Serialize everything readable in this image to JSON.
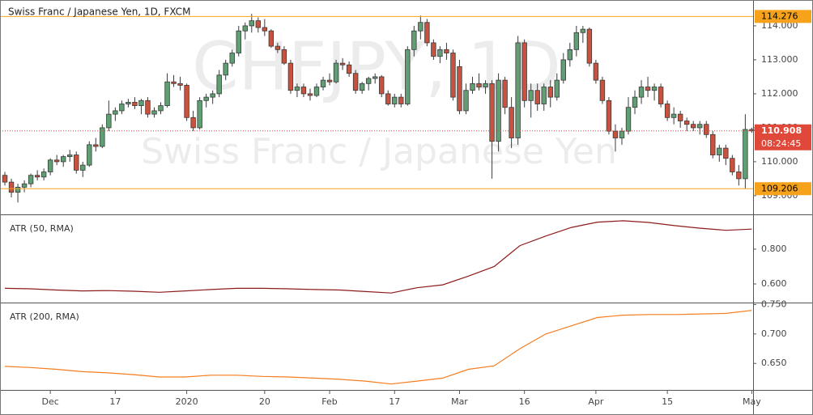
{
  "chart_data": {
    "type": "candlestick",
    "title": "Swiss Franc / Japanese Yen, 1D, FXCM",
    "watermark_symbol": "CHFJPY, 1D",
    "watermark_name": "Swiss Franc / Japanese Yen",
    "up_color": "#5f9f73",
    "down_color": "#c9523f",
    "candles": [
      [
        109.6,
        109.7,
        109.3,
        109.4
      ],
      [
        109.4,
        109.5,
        108.95,
        109.1
      ],
      [
        109.1,
        109.35,
        108.8,
        109.25
      ],
      [
        109.25,
        109.45,
        109.1,
        109.35
      ],
      [
        109.35,
        109.65,
        109.25,
        109.6
      ],
      [
        109.6,
        109.75,
        109.45,
        109.55
      ],
      [
        109.55,
        109.8,
        109.45,
        109.7
      ],
      [
        109.7,
        110.1,
        109.6,
        110.05
      ],
      [
        110.05,
        110.2,
        109.9,
        110.0
      ],
      [
        110.0,
        110.2,
        109.85,
        110.15
      ],
      [
        110.15,
        110.35,
        110.0,
        110.2
      ],
      [
        110.2,
        110.3,
        109.65,
        109.75
      ],
      [
        109.75,
        110.0,
        109.55,
        109.9
      ],
      [
        109.9,
        110.6,
        109.85,
        110.5
      ],
      [
        110.5,
        110.7,
        110.3,
        110.45
      ],
      [
        110.45,
        111.1,
        110.4,
        111.0
      ],
      [
        111.0,
        111.8,
        110.9,
        111.4
      ],
      [
        111.4,
        111.6,
        111.2,
        111.5
      ],
      [
        111.5,
        111.8,
        111.4,
        111.7
      ],
      [
        111.7,
        111.85,
        111.6,
        111.75
      ],
      [
        111.75,
        111.9,
        111.55,
        111.65
      ],
      [
        111.65,
        111.85,
        111.4,
        111.8
      ],
      [
        111.8,
        111.9,
        111.3,
        111.4
      ],
      [
        111.4,
        111.6,
        111.3,
        111.5
      ],
      [
        111.5,
        111.75,
        111.4,
        111.65
      ],
      [
        111.65,
        112.6,
        111.6,
        112.35
      ],
      [
        112.35,
        112.55,
        112.2,
        112.3
      ],
      [
        112.3,
        112.5,
        112.1,
        112.25
      ],
      [
        112.25,
        112.3,
        111.2,
        111.3
      ],
      [
        111.3,
        111.5,
        110.9,
        111.0
      ],
      [
        111.0,
        111.9,
        110.95,
        111.8
      ],
      [
        111.8,
        112.0,
        111.6,
        111.9
      ],
      [
        111.9,
        112.1,
        111.7,
        112.0
      ],
      [
        112.0,
        112.7,
        111.9,
        112.55
      ],
      [
        112.55,
        113.0,
        112.4,
        112.9
      ],
      [
        112.9,
        113.3,
        112.8,
        113.2
      ],
      [
        113.2,
        114.0,
        113.1,
        113.85
      ],
      [
        113.85,
        114.1,
        113.6,
        114.0
      ],
      [
        114.0,
        114.35,
        113.8,
        114.15
      ],
      [
        114.15,
        114.25,
        113.8,
        113.95
      ],
      [
        113.95,
        114.2,
        113.7,
        113.85
      ],
      [
        113.85,
        113.9,
        113.35,
        113.4
      ],
      [
        113.4,
        113.5,
        113.2,
        113.3
      ],
      [
        113.3,
        113.4,
        112.85,
        112.9
      ],
      [
        112.9,
        113.0,
        112.0,
        112.1
      ],
      [
        112.1,
        112.3,
        111.9,
        112.2
      ],
      [
        112.2,
        112.3,
        111.9,
        112.0
      ],
      [
        112.0,
        112.15,
        111.8,
        111.95
      ],
      [
        111.95,
        112.3,
        111.9,
        112.2
      ],
      [
        112.2,
        112.5,
        112.1,
        112.4
      ],
      [
        112.4,
        112.6,
        112.25,
        112.35
      ],
      [
        112.35,
        113.0,
        112.3,
        112.9
      ],
      [
        112.9,
        113.05,
        112.7,
        112.85
      ],
      [
        112.85,
        112.95,
        112.5,
        112.6
      ],
      [
        112.6,
        112.7,
        112.0,
        112.1
      ],
      [
        112.1,
        112.35,
        112.0,
        112.3
      ],
      [
        112.3,
        112.5,
        112.1,
        112.45
      ],
      [
        112.45,
        112.6,
        112.3,
        112.5
      ],
      [
        112.5,
        112.55,
        111.9,
        112.0
      ],
      [
        112.0,
        112.1,
        111.65,
        111.7
      ],
      [
        111.7,
        112.0,
        111.6,
        111.9
      ],
      [
        111.9,
        112.0,
        111.6,
        111.7
      ],
      [
        111.7,
        113.4,
        111.65,
        113.3
      ],
      [
        113.3,
        114.0,
        113.1,
        113.85
      ],
      [
        113.85,
        114.3,
        113.6,
        114.1
      ],
      [
        114.1,
        114.2,
        113.4,
        113.5
      ],
      [
        113.5,
        113.6,
        113.0,
        113.1
      ],
      [
        113.1,
        113.4,
        112.9,
        113.3
      ],
      [
        113.3,
        113.5,
        113.0,
        113.2
      ],
      [
        113.2,
        113.3,
        111.8,
        111.9
      ],
      [
        112.8,
        113.0,
        111.4,
        111.5
      ],
      [
        111.5,
        112.3,
        111.4,
        112.1
      ],
      [
        112.1,
        112.5,
        112.0,
        112.3
      ],
      [
        112.3,
        112.6,
        112.1,
        112.2
      ],
      [
        112.2,
        112.4,
        112.0,
        112.3
      ],
      [
        112.3,
        112.4,
        109.5,
        110.6
      ],
      [
        110.6,
        112.6,
        110.3,
        112.4
      ],
      [
        112.4,
        112.5,
        111.4,
        111.6
      ],
      [
        111.6,
        111.9,
        110.4,
        110.7
      ],
      [
        110.7,
        113.7,
        110.5,
        113.5
      ],
      [
        113.5,
        113.6,
        111.6,
        111.8
      ],
      [
        111.8,
        112.3,
        111.3,
        112.1
      ],
      [
        112.1,
        112.3,
        111.5,
        111.7
      ],
      [
        111.7,
        112.3,
        111.5,
        112.2
      ],
      [
        112.2,
        112.4,
        111.6,
        111.9
      ],
      [
        111.9,
        112.6,
        111.8,
        112.4
      ],
      [
        112.4,
        113.2,
        112.3,
        113.0
      ],
      [
        113.0,
        113.5,
        112.8,
        113.3
      ],
      [
        113.3,
        114.0,
        113.1,
        113.8
      ],
      [
        113.8,
        114.0,
        113.5,
        113.9
      ],
      [
        113.9,
        113.95,
        112.8,
        112.9
      ],
      [
        112.9,
        113.0,
        112.3,
        112.4
      ],
      [
        112.4,
        112.5,
        111.7,
        111.8
      ],
      [
        111.8,
        111.9,
        110.8,
        110.9
      ],
      [
        110.9,
        111.1,
        110.3,
        110.7
      ],
      [
        110.7,
        111.0,
        110.5,
        110.9
      ],
      [
        110.9,
        111.9,
        110.8,
        111.6
      ],
      [
        111.6,
        112.1,
        111.4,
        111.9
      ],
      [
        111.9,
        112.4,
        111.7,
        112.2
      ],
      [
        112.2,
        112.5,
        111.9,
        112.1
      ],
      [
        112.1,
        112.3,
        111.8,
        112.2
      ],
      [
        112.2,
        112.3,
        111.6,
        111.7
      ],
      [
        111.7,
        111.8,
        111.2,
        111.3
      ],
      [
        111.3,
        111.6,
        111.1,
        111.4
      ],
      [
        111.4,
        111.5,
        111.0,
        111.2
      ],
      [
        111.2,
        111.3,
        110.9,
        111.1
      ],
      [
        111.1,
        111.2,
        110.9,
        111.0
      ],
      [
        111.0,
        111.2,
        110.8,
        111.1
      ],
      [
        111.1,
        111.2,
        110.7,
        110.8
      ],
      [
        110.8,
        110.9,
        110.1,
        110.2
      ],
      [
        110.2,
        110.5,
        110.0,
        110.4
      ],
      [
        110.4,
        110.5,
        109.9,
        110.1
      ],
      [
        110.1,
        110.2,
        109.6,
        109.7
      ],
      [
        109.7,
        109.9,
        109.3,
        109.5
      ],
      [
        109.5,
        111.4,
        109.2,
        110.95
      ],
      [
        110.95,
        111.0,
        110.85,
        110.908
      ]
    ],
    "xlim": [
      -0.75,
      115.2
    ],
    "xticks": [
      {
        "value": 7,
        "label": "Dec"
      },
      17,
      {
        "value": 28,
        "label": "2020"
      },
      {
        "value": 40,
        "label": "20"
      },
      {
        "value": 50,
        "label": "Feb"
      },
      {
        "value": 60,
        "label": "17"
      },
      {
        "value": 70,
        "label": "Mar"
      },
      {
        "value": 80,
        "label": "16"
      },
      {
        "value": 91,
        "label": "Apr"
      },
      {
        "value": 102,
        "label": "15"
      },
      {
        "value": 115,
        "label": "May"
      }
    ],
    "ylim": [
      108.45,
      114.76
    ],
    "yticks": [
      {
        "value": 114,
        "label": "114.000"
      },
      {
        "value": 113,
        "label": "113.000"
      },
      {
        "value": 112,
        "label": "112.000"
      },
      {
        "value": 111,
        "label": "111.000"
      },
      {
        "value": 110,
        "label": "110.000"
      },
      {
        "value": 109,
        "label": "109.000"
      }
    ],
    "levels": [
      {
        "value": 114.276,
        "color": "#f7a21b"
      },
      {
        "value": 109.206,
        "color": "#f7a21b"
      }
    ],
    "last_price": 110.908,
    "last_price_color": "#e0493a",
    "countdown": "08:24:45",
    "panes": [
      {
        "type": "line",
        "name": "ATR (50, RMA)",
        "color": "#8e1b1b",
        "values": [
          0.575,
          0.572,
          0.565,
          0.56,
          0.562,
          0.558,
          0.552,
          0.56,
          0.568,
          0.575,
          0.575,
          0.572,
          0.568,
          0.565,
          0.556,
          0.548,
          0.578,
          0.595,
          0.645,
          0.7,
          0.82,
          0.875,
          0.925,
          0.955,
          0.963,
          0.953,
          0.935,
          0.92,
          0.908,
          0.915
        ],
        "ylim": [
          0.493,
          0.995
        ],
        "yticks": [
          {
            "value": 0.8,
            "label": "0.800"
          },
          {
            "value": 0.6,
            "label": "0.600"
          }
        ]
      },
      {
        "type": "line",
        "name": "ATR (200, RMA)",
        "color": "#f57d1f",
        "values": [
          0.645,
          0.643,
          0.64,
          0.636,
          0.634,
          0.631,
          0.627,
          0.627,
          0.63,
          0.63,
          0.628,
          0.627,
          0.625,
          0.623,
          0.62,
          0.615,
          0.62,
          0.625,
          0.64,
          0.646,
          0.675,
          0.7,
          0.714,
          0.728,
          0.732,
          0.733,
          0.733,
          0.734,
          0.735,
          0.74
        ],
        "ylim": [
          0.605,
          0.752
        ],
        "yticks": [
          {
            "value": 0.75,
            "label": "0.750"
          },
          {
            "value": 0.7,
            "label": "0.700"
          },
          {
            "value": 0.65,
            "label": "0.650"
          }
        ]
      }
    ]
  }
}
